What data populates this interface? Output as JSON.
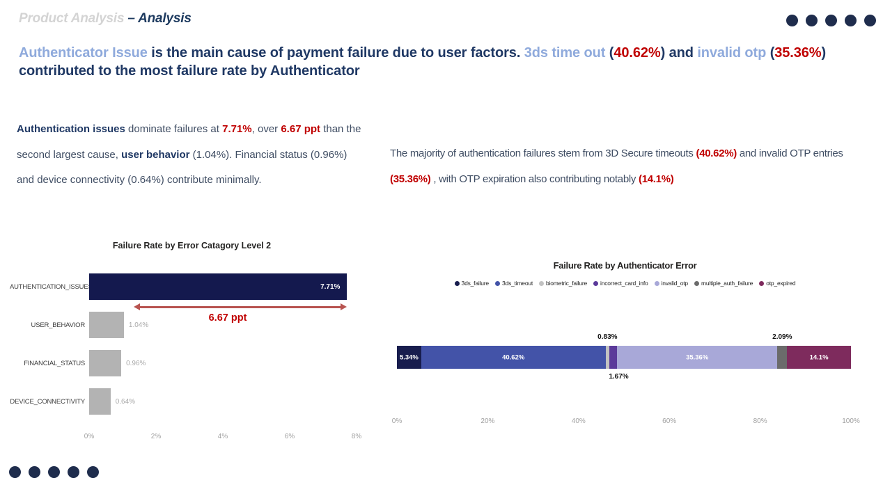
{
  "header": {
    "title_light": "Product Analysis ",
    "title_dark": "– Analysis"
  },
  "decor": {
    "dot_color": "#1f2d4d",
    "top_right_dots": 5,
    "bottom_left_dots": 5
  },
  "headline": {
    "segments": [
      {
        "text": "Authenticator Issue ",
        "style": "blue"
      },
      {
        "text": "is the main cause of payment failure due to user factors. ",
        "style": "dark"
      },
      {
        "text": "3ds time out ",
        "style": "blue"
      },
      {
        "text": "(",
        "style": "dark"
      },
      {
        "text": "40.62%",
        "style": "red"
      },
      {
        "text": ") and ",
        "style": "dark"
      },
      {
        "text": "invalid otp ",
        "style": "blue"
      },
      {
        "text": "(",
        "style": "dark"
      },
      {
        "text": "35.36%",
        "style": "red"
      },
      {
        "text": ") contributed to the most failure rate by Authenticator",
        "style": "dark"
      }
    ]
  },
  "paragraph_left": {
    "segments": [
      {
        "text": "Authentication issues",
        "style": "bold-dark"
      },
      {
        "text": " dominate failures at ",
        "style": "normal"
      },
      {
        "text": "7.71%",
        "style": "bold-red"
      },
      {
        "text": ", over ",
        "style": "normal"
      },
      {
        "text": "6.67 ppt",
        "style": "bold-red"
      },
      {
        "text": " than the second largest cause, ",
        "style": "normal"
      },
      {
        "text": "user behavior",
        "style": "bold-dark"
      },
      {
        "text": " (1.04%). Financial status (0.96%) and device connectivity (0.64%) contribute minimally.",
        "style": "normal"
      }
    ]
  },
  "paragraph_right": {
    "segments": [
      {
        "text": "The majority of authentication failures stem from 3D Secure timeouts ",
        "style": "normal"
      },
      {
        "text": "(40.62%)",
        "style": "bold-red"
      },
      {
        "text": " and invalid OTP entries ",
        "style": "normal"
      },
      {
        "text": "(35.36%)",
        "style": "bold-red"
      },
      {
        "text": " , with OTP expiration also contributing notably ",
        "style": "normal"
      },
      {
        "text": "(14.1%)",
        "style": "bold-red"
      }
    ]
  },
  "chart_data": [
    {
      "type": "bar",
      "orientation": "horizontal",
      "title": "Failure Rate by Error Catagory Level 2",
      "categories": [
        "AUTHENTICATION_ISSUES",
        "USER_BEHAVIOR",
        "FINANCIAL_STATUS",
        "DEVICE_CONNECTIVITY"
      ],
      "values": [
        7.71,
        1.04,
        0.96,
        0.64
      ],
      "value_labels": [
        "7.71%",
        "1.04%",
        "0.96%",
        "0.64%"
      ],
      "bar_colors": [
        "#14194e",
        "#b3b3b3",
        "#b3b3b3",
        "#b3b3b3"
      ],
      "label_inside": [
        true,
        false,
        false,
        false
      ],
      "xlim": [
        0,
        8
      ],
      "x_ticks": [
        "0%",
        "2%",
        "4%",
        "6%",
        "8%"
      ],
      "grid": false,
      "annotation": {
        "text": "6.67 ppt",
        "from_value": 1.04,
        "to_value": 7.71,
        "text_color": "#c00000",
        "arrow_color": "#b85450"
      }
    },
    {
      "type": "stacked-bar",
      "title": "Failure Rate by Authenticator Error",
      "legend_position": "top",
      "series": [
        {
          "name": "3ds_failure",
          "value": 5.34,
          "label": "5.34%",
          "color": "#181d4e",
          "label_pos": "inside"
        },
        {
          "name": "3ds_timeout",
          "value": 40.62,
          "label": "40.62%",
          "color": "#4353a8",
          "label_pos": "inside"
        },
        {
          "name": "biometric_failure",
          "value": 0.83,
          "label": "0.83%",
          "color": "#c2c2c2",
          "label_pos": "above"
        },
        {
          "name": "incorrect_card_info",
          "value": 1.67,
          "label": "1.67%",
          "color": "#5b3a9a",
          "label_pos": "below"
        },
        {
          "name": "invalid_otp",
          "value": 35.36,
          "label": "35.36%",
          "color": "#a8a8d8",
          "label_pos": "inside"
        },
        {
          "name": "multiple_auth_failure",
          "value": 2.09,
          "label": "2.09%",
          "color": "#6b6b6b",
          "label_pos": "above"
        },
        {
          "name": "otp_expired",
          "value": 14.1,
          "label": "14.1%",
          "color": "#7e2b5d",
          "label_pos": "inside"
        }
      ],
      "xlim": [
        0,
        100
      ],
      "x_ticks": [
        "0%",
        "20%",
        "40%",
        "60%",
        "80%",
        "100%"
      ],
      "grid": false
    }
  ]
}
